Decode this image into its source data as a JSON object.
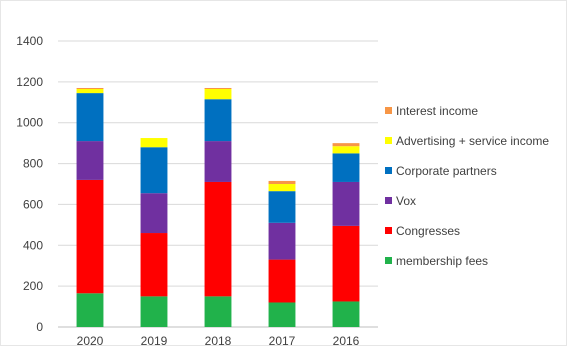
{
  "chart_data": {
    "type": "bar",
    "stacked": true,
    "title": "",
    "xlabel": "",
    "ylabel": "",
    "categories": [
      "2020",
      "2019",
      "2018",
      "2017",
      "2016"
    ],
    "ylim": [
      0,
      1400
    ],
    "yticks": [
      0,
      200,
      400,
      600,
      800,
      1000,
      1200,
      1400
    ],
    "grid": true,
    "legend_position": "right",
    "legend_order": [
      "Interest income",
      "Advertising + service income",
      "Corporate partners",
      "Vox",
      "Congresses",
      "membership fees"
    ],
    "series": [
      {
        "name": "membership fees",
        "color": "#21b24b",
        "values": [
          165,
          150,
          150,
          120,
          125
        ]
      },
      {
        "name": "Congresses",
        "color": "#ff0000",
        "values": [
          555,
          310,
          560,
          210,
          370
        ]
      },
      {
        "name": "Vox",
        "color": "#7030a0",
        "values": [
          190,
          195,
          200,
          180,
          215
        ]
      },
      {
        "name": "Corporate partners",
        "color": "#0070c0",
        "values": [
          235,
          225,
          205,
          155,
          140
        ]
      },
      {
        "name": "Advertising + service income",
        "color": "#ffff00",
        "values": [
          20,
          45,
          50,
          35,
          35
        ]
      },
      {
        "name": "Interest income",
        "color": "#f79646",
        "values": [
          5,
          0,
          5,
          15,
          15
        ]
      }
    ]
  }
}
